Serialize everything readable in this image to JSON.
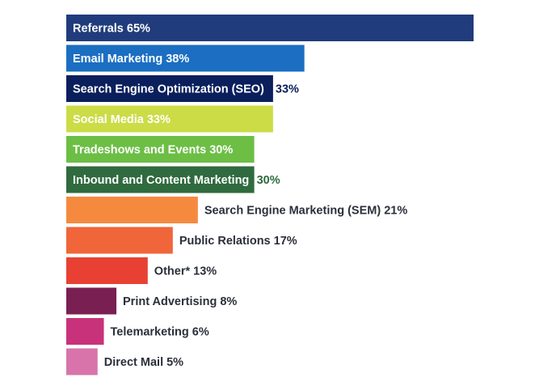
{
  "chart_data": {
    "type": "bar",
    "orientation": "horizontal",
    "title": "",
    "xlabel": "",
    "ylabel": "",
    "xlim": [
      0,
      65
    ],
    "categories": [
      "Referrals",
      "Email Marketing",
      "Search Engine Optimization (SEO)",
      "Social Media",
      "Tradeshows and Events",
      "Inbound and Content Marketing",
      "Search Engine Marketing (SEM)",
      "Public Relations",
      "Other*",
      "Print Advertising",
      "Telemarketing",
      "Direct Mail"
    ],
    "values": [
      65,
      38,
      33,
      33,
      30,
      30,
      21,
      17,
      13,
      8,
      6,
      5
    ],
    "value_labels": [
      "65%",
      "38%",
      "33%",
      "33%",
      "30%",
      "30%",
      "21%",
      "17%",
      "13%",
      "8%",
      "6%",
      "5%"
    ],
    "colors": [
      "#203c7c",
      "#1b6ec2",
      "#0a1f5c",
      "#cbdc47",
      "#6cbe45",
      "#2f6b3e",
      "#f58a3f",
      "#f0663a",
      "#e84133",
      "#7a1f52",
      "#c8327a",
      "#d874aa"
    ],
    "label_placement": [
      "inside",
      "inside",
      "inside-category-outside-value",
      "inside",
      "inside",
      "inside-category-outside-value",
      "outside",
      "outside",
      "outside",
      "outside",
      "outside",
      "outside"
    ],
    "inside_text_color": "#ffffff",
    "outside_text_color": "#2b2f3a",
    "split_value_colors": [
      "#0a1f5c",
      "#0a1f5c",
      "#0a1f5c",
      "#0a1f5c",
      "#0a1f5c",
      "#2f6b3e",
      "#2b2f3a",
      "#2b2f3a",
      "#2b2f3a",
      "#2b2f3a",
      "#2b2f3a",
      "#2b2f3a"
    ]
  }
}
